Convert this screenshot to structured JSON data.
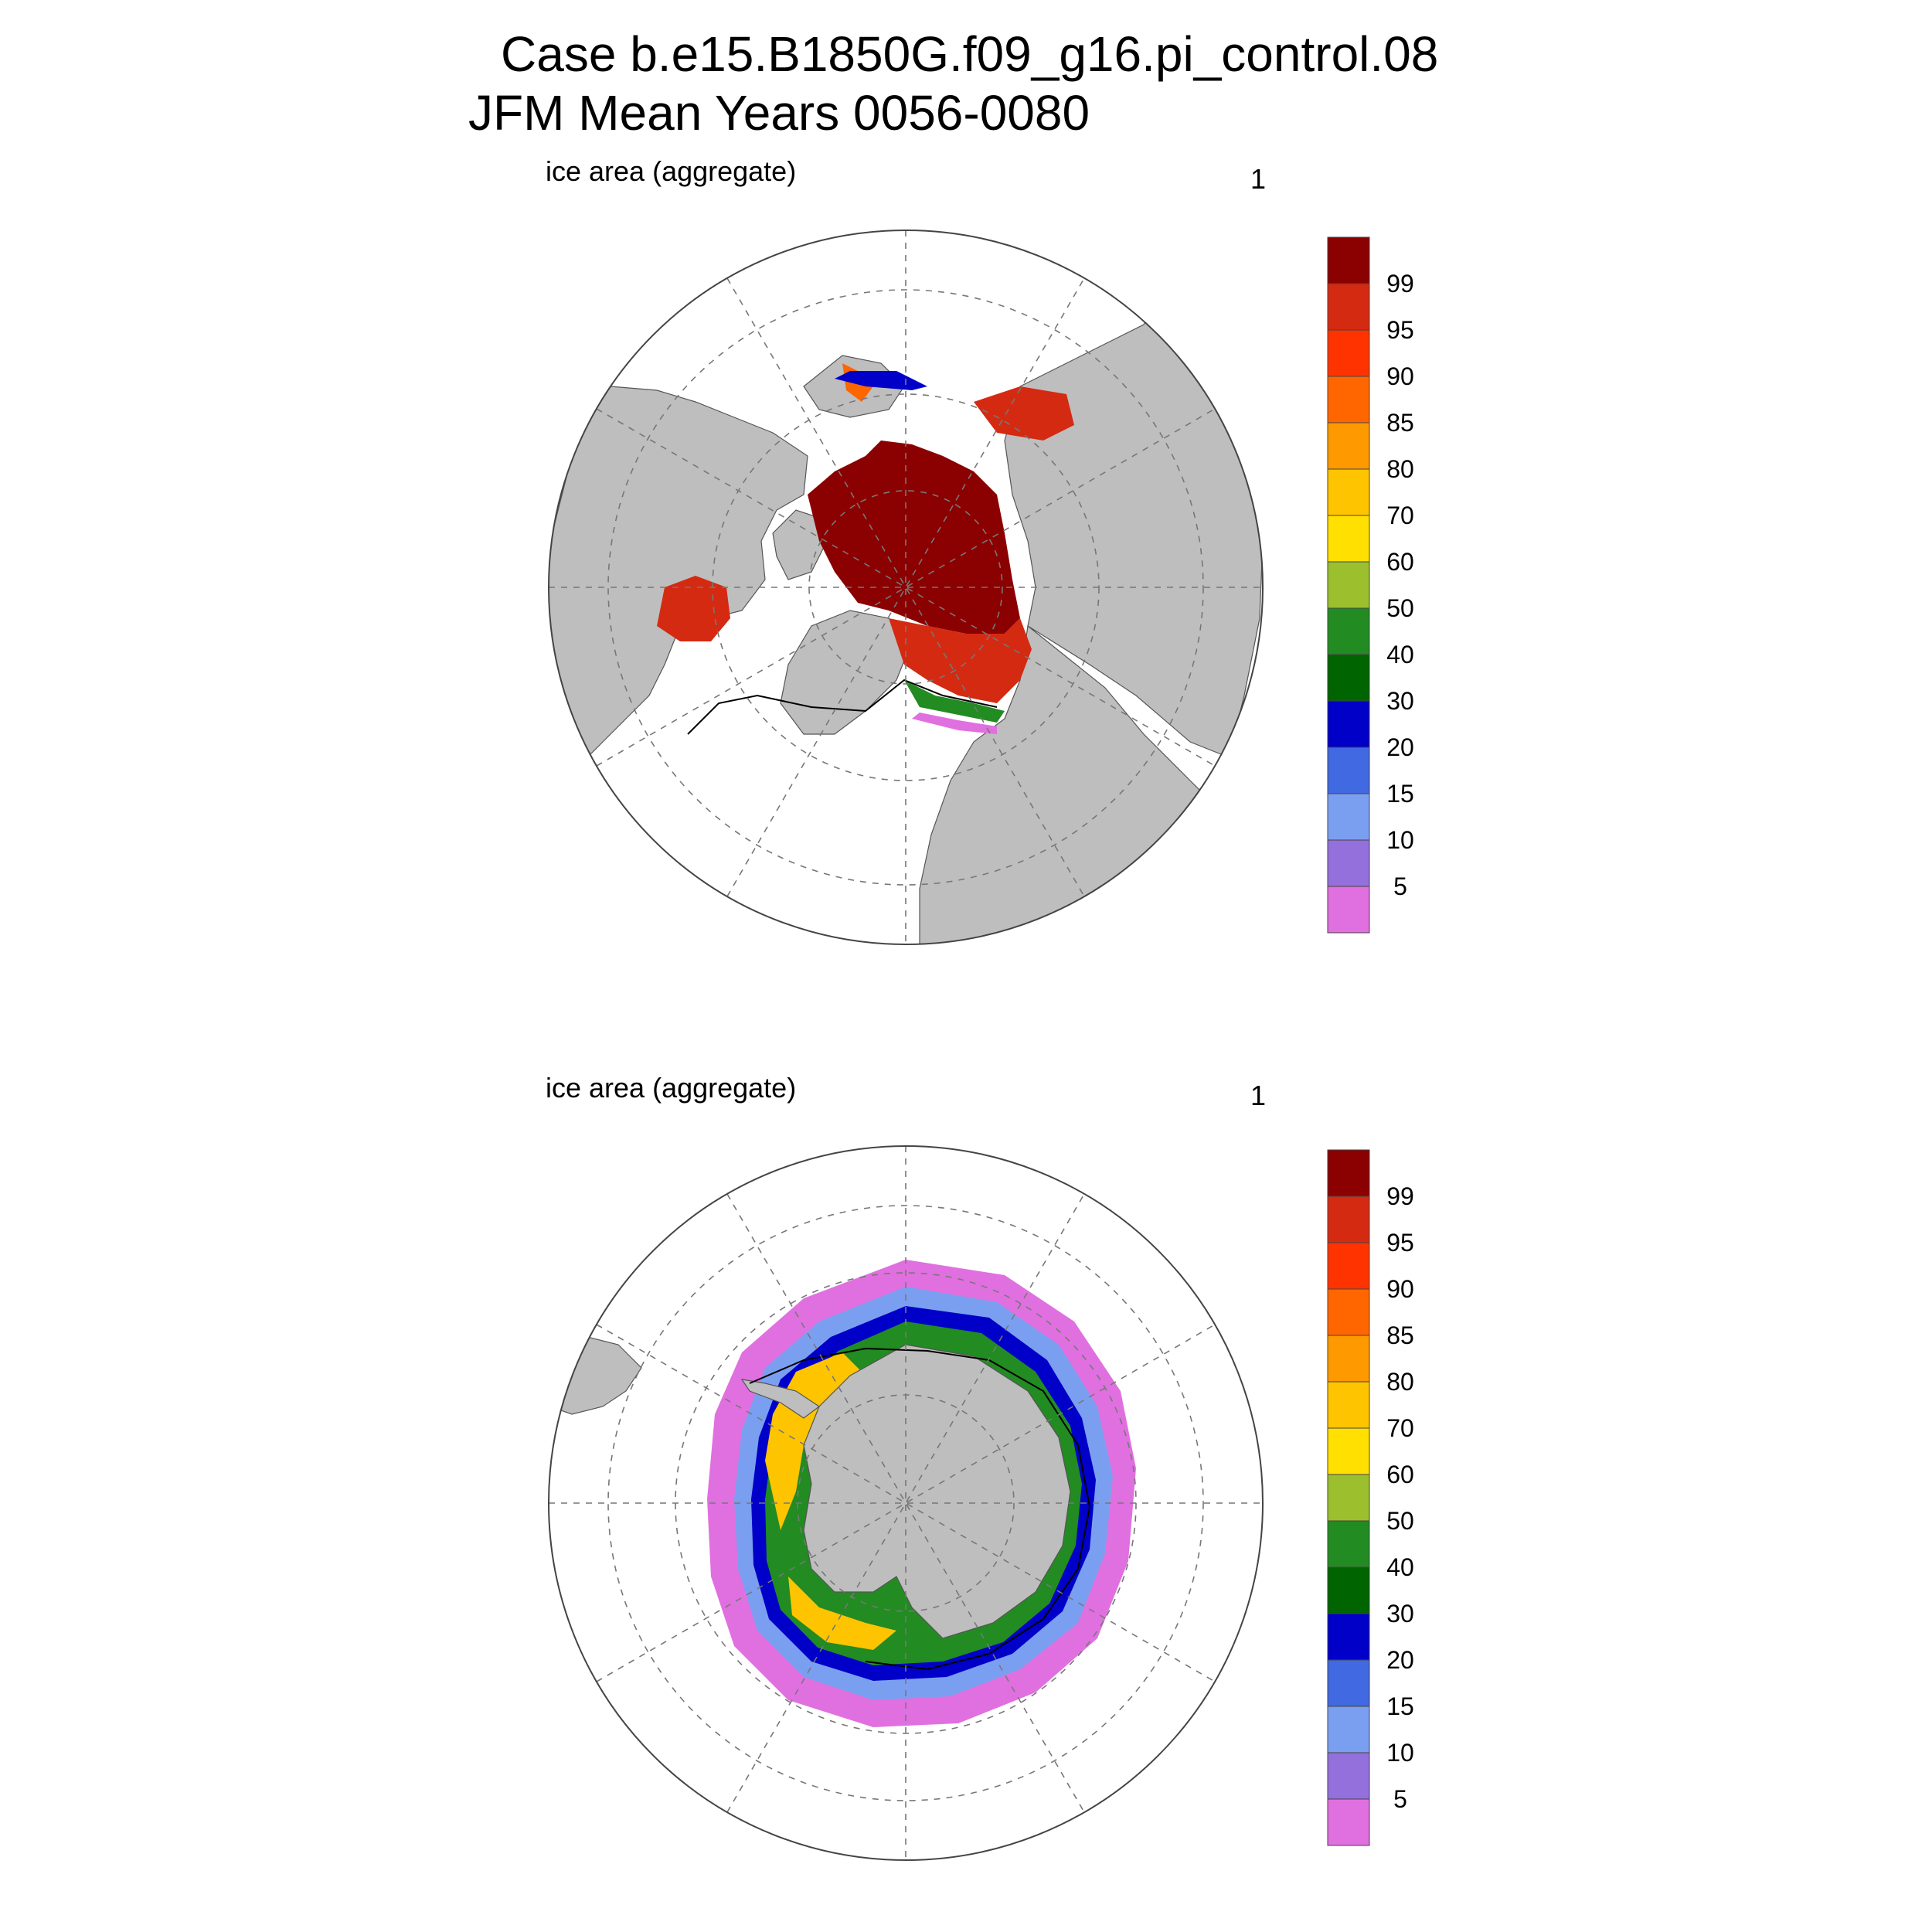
{
  "header": {
    "title_line1": "Case b.e15.B1850G.f09_g16.pi_control.08",
    "title_line2": "JFM Mean     Years 0056-0080"
  },
  "panels": [
    {
      "hemisphere": "north",
      "left_label": "ice area  (aggregate)",
      "right_label": "1"
    },
    {
      "hemisphere": "south",
      "left_label": "ice area  (aggregate)",
      "right_label": "1"
    }
  ],
  "colorbar": {
    "levels": [
      "99",
      "95",
      "90",
      "85",
      "80",
      "70",
      "60",
      "50",
      "40",
      "30",
      "20",
      "15",
      "10",
      "5"
    ],
    "colors_top_to_bottom": [
      "#8b0000",
      "#d42a12",
      "#ff3300",
      "#ff6600",
      "#ff9900",
      "#ffc400",
      "#ffe000",
      "#9cbf2e",
      "#228b22",
      "#006400",
      "#0000c8",
      "#4169e1",
      "#7b9ff0",
      "#9370db",
      "#e070e0"
    ]
  },
  "style": {
    "land_color": "#bebebe",
    "ocean_color": "#ffffff"
  }
}
